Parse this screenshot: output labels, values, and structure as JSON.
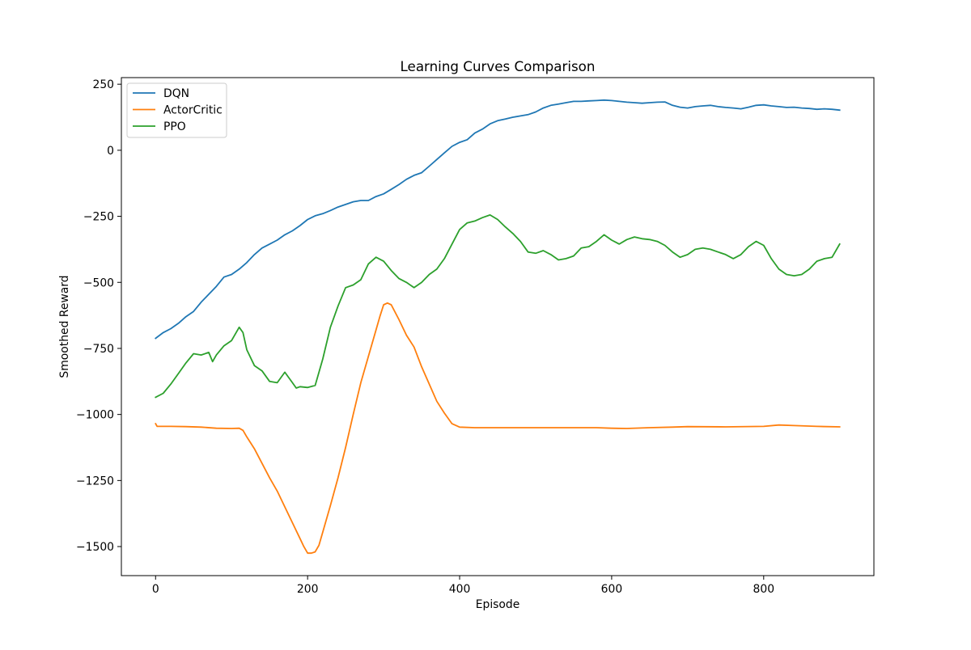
{
  "chart_data": {
    "type": "line",
    "title": "Learning Curves Comparison",
    "xlabel": "Episode",
    "ylabel": "Smoothed Reward",
    "xlim": [
      -45,
      945
    ],
    "ylim": [
      -1610,
      275
    ],
    "xticks": [
      0,
      200,
      400,
      600,
      800
    ],
    "yticks": [
      250,
      0,
      -250,
      -500,
      -750,
      -1000,
      -1250,
      -1500
    ],
    "xtick_labels": [
      "0",
      "200",
      "400",
      "600",
      "800"
    ],
    "ytick_labels": [
      "250",
      "0",
      "−250",
      "−500",
      "−750",
      "−1000",
      "−1250",
      "−1500"
    ],
    "grid": false,
    "legend_position": "upper left",
    "series": [
      {
        "name": "DQN",
        "color": "#1f77b4",
        "points": [
          [
            0,
            -712
          ],
          [
            10,
            -690
          ],
          [
            20,
            -675
          ],
          [
            30,
            -655
          ],
          [
            40,
            -630
          ],
          [
            50,
            -610
          ],
          [
            60,
            -575
          ],
          [
            70,
            -545
          ],
          [
            80,
            -515
          ],
          [
            90,
            -480
          ],
          [
            100,
            -470
          ],
          [
            110,
            -450
          ],
          [
            120,
            -425
          ],
          [
            130,
            -395
          ],
          [
            140,
            -370
          ],
          [
            150,
            -355
          ],
          [
            160,
            -340
          ],
          [
            170,
            -320
          ],
          [
            180,
            -305
          ],
          [
            190,
            -285
          ],
          [
            200,
            -262
          ],
          [
            210,
            -248
          ],
          [
            220,
            -240
          ],
          [
            230,
            -228
          ],
          [
            240,
            -215
          ],
          [
            250,
            -205
          ],
          [
            260,
            -195
          ],
          [
            270,
            -190
          ],
          [
            280,
            -190
          ],
          [
            290,
            -175
          ],
          [
            300,
            -165
          ],
          [
            310,
            -148
          ],
          [
            320,
            -130
          ],
          [
            330,
            -110
          ],
          [
            340,
            -95
          ],
          [
            350,
            -85
          ],
          [
            360,
            -60
          ],
          [
            370,
            -35
          ],
          [
            380,
            -10
          ],
          [
            390,
            15
          ],
          [
            400,
            30
          ],
          [
            410,
            40
          ],
          [
            420,
            65
          ],
          [
            430,
            80
          ],
          [
            440,
            100
          ],
          [
            450,
            112
          ],
          [
            460,
            118
          ],
          [
            470,
            125
          ],
          [
            480,
            130
          ],
          [
            490,
            135
          ],
          [
            500,
            145
          ],
          [
            510,
            160
          ],
          [
            520,
            170
          ],
          [
            530,
            175
          ],
          [
            540,
            180
          ],
          [
            550,
            185
          ],
          [
            560,
            185
          ],
          [
            570,
            187
          ],
          [
            580,
            188
          ],
          [
            590,
            190
          ],
          [
            600,
            188
          ],
          [
            610,
            185
          ],
          [
            620,
            182
          ],
          [
            630,
            180
          ],
          [
            640,
            178
          ],
          [
            650,
            180
          ],
          [
            660,
            182
          ],
          [
            670,
            183
          ],
          [
            680,
            170
          ],
          [
            690,
            163
          ],
          [
            700,
            160
          ],
          [
            710,
            165
          ],
          [
            720,
            168
          ],
          [
            730,
            170
          ],
          [
            740,
            165
          ],
          [
            750,
            162
          ],
          [
            760,
            160
          ],
          [
            770,
            157
          ],
          [
            780,
            163
          ],
          [
            790,
            170
          ],
          [
            800,
            172
          ],
          [
            810,
            168
          ],
          [
            820,
            165
          ],
          [
            830,
            162
          ],
          [
            840,
            163
          ],
          [
            850,
            160
          ],
          [
            860,
            158
          ],
          [
            870,
            155
          ],
          [
            880,
            157
          ],
          [
            890,
            155
          ],
          [
            900,
            152
          ]
        ]
      },
      {
        "name": "ActorCritic",
        "color": "#ff7f0e",
        "points": [
          [
            0,
            -1035
          ],
          [
            2,
            -1045
          ],
          [
            20,
            -1045
          ],
          [
            40,
            -1046
          ],
          [
            60,
            -1048
          ],
          [
            80,
            -1052
          ],
          [
            100,
            -1053
          ],
          [
            110,
            -1052
          ],
          [
            115,
            -1060
          ],
          [
            120,
            -1085
          ],
          [
            130,
            -1130
          ],
          [
            140,
            -1185
          ],
          [
            150,
            -1240
          ],
          [
            160,
            -1290
          ],
          [
            170,
            -1350
          ],
          [
            180,
            -1410
          ],
          [
            190,
            -1470
          ],
          [
            195,
            -1500
          ],
          [
            200,
            -1525
          ],
          [
            205,
            -1525
          ],
          [
            210,
            -1520
          ],
          [
            215,
            -1495
          ],
          [
            220,
            -1445
          ],
          [
            230,
            -1345
          ],
          [
            240,
            -1240
          ],
          [
            250,
            -1125
          ],
          [
            260,
            -1000
          ],
          [
            270,
            -880
          ],
          [
            280,
            -780
          ],
          [
            290,
            -680
          ],
          [
            295,
            -630
          ],
          [
            300,
            -585
          ],
          [
            305,
            -578
          ],
          [
            310,
            -585
          ],
          [
            320,
            -640
          ],
          [
            330,
            -700
          ],
          [
            340,
            -745
          ],
          [
            350,
            -820
          ],
          [
            360,
            -885
          ],
          [
            370,
            -950
          ],
          [
            380,
            -995
          ],
          [
            390,
            -1035
          ],
          [
            400,
            -1048
          ],
          [
            420,
            -1050
          ],
          [
            450,
            -1050
          ],
          [
            500,
            -1050
          ],
          [
            550,
            -1050
          ],
          [
            580,
            -1050
          ],
          [
            600,
            -1052
          ],
          [
            620,
            -1053
          ],
          [
            650,
            -1050
          ],
          [
            680,
            -1048
          ],
          [
            700,
            -1046
          ],
          [
            750,
            -1047
          ],
          [
            800,
            -1045
          ],
          [
            820,
            -1040
          ],
          [
            840,
            -1042
          ],
          [
            870,
            -1045
          ],
          [
            900,
            -1047
          ]
        ]
      },
      {
        "name": "PPO",
        "color": "#2ca02c",
        "points": [
          [
            0,
            -935
          ],
          [
            10,
            -920
          ],
          [
            20,
            -885
          ],
          [
            30,
            -845
          ],
          [
            40,
            -805
          ],
          [
            50,
            -770
          ],
          [
            60,
            -775
          ],
          [
            70,
            -765
          ],
          [
            75,
            -800
          ],
          [
            80,
            -775
          ],
          [
            90,
            -740
          ],
          [
            100,
            -720
          ],
          [
            110,
            -670
          ],
          [
            115,
            -690
          ],
          [
            120,
            -755
          ],
          [
            130,
            -815
          ],
          [
            140,
            -835
          ],
          [
            150,
            -875
          ],
          [
            160,
            -880
          ],
          [
            170,
            -840
          ],
          [
            180,
            -880
          ],
          [
            185,
            -900
          ],
          [
            190,
            -895
          ],
          [
            200,
            -898
          ],
          [
            210,
            -890
          ],
          [
            220,
            -790
          ],
          [
            230,
            -670
          ],
          [
            240,
            -590
          ],
          [
            250,
            -520
          ],
          [
            260,
            -510
          ],
          [
            270,
            -490
          ],
          [
            280,
            -430
          ],
          [
            290,
            -405
          ],
          [
            300,
            -420
          ],
          [
            310,
            -455
          ],
          [
            320,
            -485
          ],
          [
            330,
            -500
          ],
          [
            340,
            -520
          ],
          [
            350,
            -500
          ],
          [
            360,
            -470
          ],
          [
            370,
            -450
          ],
          [
            380,
            -410
          ],
          [
            390,
            -355
          ],
          [
            400,
            -300
          ],
          [
            410,
            -275
          ],
          [
            420,
            -268
          ],
          [
            430,
            -255
          ],
          [
            440,
            -245
          ],
          [
            450,
            -262
          ],
          [
            460,
            -290
          ],
          [
            470,
            -315
          ],
          [
            480,
            -345
          ],
          [
            490,
            -385
          ],
          [
            500,
            -390
          ],
          [
            510,
            -380
          ],
          [
            520,
            -395
          ],
          [
            530,
            -415
          ],
          [
            540,
            -410
          ],
          [
            550,
            -400
          ],
          [
            560,
            -370
          ],
          [
            570,
            -365
          ],
          [
            580,
            -345
          ],
          [
            590,
            -320
          ],
          [
            600,
            -340
          ],
          [
            610,
            -355
          ],
          [
            620,
            -338
          ],
          [
            630,
            -328
          ],
          [
            640,
            -335
          ],
          [
            650,
            -338
          ],
          [
            660,
            -345
          ],
          [
            670,
            -360
          ],
          [
            680,
            -385
          ],
          [
            690,
            -405
          ],
          [
            700,
            -395
          ],
          [
            710,
            -375
          ],
          [
            720,
            -370
          ],
          [
            730,
            -375
          ],
          [
            740,
            -385
          ],
          [
            750,
            -395
          ],
          [
            760,
            -410
          ],
          [
            770,
            -395
          ],
          [
            780,
            -365
          ],
          [
            790,
            -345
          ],
          [
            800,
            -360
          ],
          [
            810,
            -410
          ],
          [
            820,
            -450
          ],
          [
            830,
            -470
          ],
          [
            840,
            -475
          ],
          [
            850,
            -470
          ],
          [
            860,
            -450
          ],
          [
            870,
            -420
          ],
          [
            880,
            -410
          ],
          [
            890,
            -405
          ],
          [
            900,
            -355
          ]
        ]
      }
    ]
  }
}
